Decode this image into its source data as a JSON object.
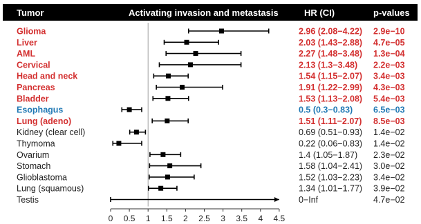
{
  "colors": {
    "header_bg": "#000000",
    "header_text": "#ffffff",
    "significant_high": "#d32f2f",
    "significant_low": "#1f78b4",
    "non_significant": "#222222",
    "ci_bar": "#000000",
    "reference_line": "#9e9e9e"
  },
  "header": {
    "tumor": "Tumor",
    "title": "Activating invasion and metastasis",
    "hr": "HR (CI)",
    "pvalue": "p-values"
  },
  "chart_data": {
    "type": "forest",
    "title": "Activating invasion and metastasis",
    "xlabel": "",
    "ylabel": "",
    "xlim": [
      0,
      4.5
    ],
    "xticks": [
      "0",
      "0.5",
      "1",
      "1.5",
      "2",
      "2.5",
      "3",
      "3.5",
      "4",
      "4.5"
    ],
    "reference_line": 1,
    "grid": false,
    "rows": [
      {
        "tumor": "Glioma",
        "hr": 2.96,
        "low": 2.08,
        "high": 4.22,
        "hr_text": "2.96 (2.08−4.22)",
        "p_text": "2.9e−10",
        "style": "high"
      },
      {
        "tumor": "Liver",
        "hr": 2.03,
        "low": 1.43,
        "high": 2.88,
        "hr_text": "2.03 (1.43−2.88)",
        "p_text": "4.7e−05",
        "style": "high"
      },
      {
        "tumor": "AML",
        "hr": 2.27,
        "low": 1.48,
        "high": 3.48,
        "hr_text": "2.27 (1.48−3.48)",
        "p_text": "1.3e−04",
        "style": "high"
      },
      {
        "tumor": "Cervical",
        "hr": 2.13,
        "low": 1.3,
        "high": 3.48,
        "hr_text": "2.13 (1.3−3.48)",
        "p_text": "2.2e−03",
        "style": "high"
      },
      {
        "tumor": "Head and neck",
        "hr": 1.54,
        "low": 1.15,
        "high": 2.07,
        "hr_text": "1.54 (1.15−2.07)",
        "p_text": "3.4e−03",
        "style": "high"
      },
      {
        "tumor": "Pancreas",
        "hr": 1.91,
        "low": 1.22,
        "high": 2.99,
        "hr_text": "1.91 (1.22−2.99)",
        "p_text": "4.3e−03",
        "style": "high"
      },
      {
        "tumor": "Bladder",
        "hr": 1.53,
        "low": 1.13,
        "high": 2.08,
        "hr_text": "1.53 (1.13−2.08)",
        "p_text": "5.4e−03",
        "style": "high"
      },
      {
        "tumor": "Esophagus",
        "hr": 0.5,
        "low": 0.3,
        "high": 0.83,
        "hr_text": "0.5 (0.3−0.83)",
        "p_text": "6.5e−03",
        "style": "low"
      },
      {
        "tumor": "Lung (adeno)",
        "hr": 1.51,
        "low": 1.11,
        "high": 2.07,
        "hr_text": "1.51 (1.11−2.07)",
        "p_text": "8.5e−03",
        "style": "high"
      },
      {
        "tumor": "Kidney (clear cell)",
        "hr": 0.69,
        "low": 0.51,
        "high": 0.93,
        "hr_text": "0.69 (0.51−0.93)",
        "p_text": "1.4e−02",
        "style": "ns"
      },
      {
        "tumor": "Thymoma",
        "hr": 0.22,
        "low": 0.06,
        "high": 0.83,
        "hr_text": "0.22 (0.06−0.83)",
        "p_text": "1.4e−02",
        "style": "ns"
      },
      {
        "tumor": "Ovarium",
        "hr": 1.4,
        "low": 1.05,
        "high": 1.87,
        "hr_text": "1.4 (1.05−1.87)",
        "p_text": "2.3e−02",
        "style": "ns"
      },
      {
        "tumor": "Stomach",
        "hr": 1.58,
        "low": 1.04,
        "high": 2.41,
        "hr_text": "1.58 (1.04−2.41)",
        "p_text": "3.0e−02",
        "style": "ns"
      },
      {
        "tumor": "Glioblastoma",
        "hr": 1.52,
        "low": 1.03,
        "high": 2.23,
        "hr_text": "1.52 (1.03−2.23)",
        "p_text": "3.4e−02",
        "style": "ns"
      },
      {
        "tumor": "Lung (squamous)",
        "hr": 1.34,
        "low": 1.01,
        "high": 1.77,
        "hr_text": "1.34 (1.01−1.77)",
        "p_text": "3.9e−02",
        "style": "ns"
      },
      {
        "tumor": "Testis",
        "hr": null,
        "low": 0,
        "high": null,
        "open_ended": true,
        "hr_text": "0−Inf",
        "p_text": "4.7e−02",
        "style": "ns"
      }
    ]
  }
}
